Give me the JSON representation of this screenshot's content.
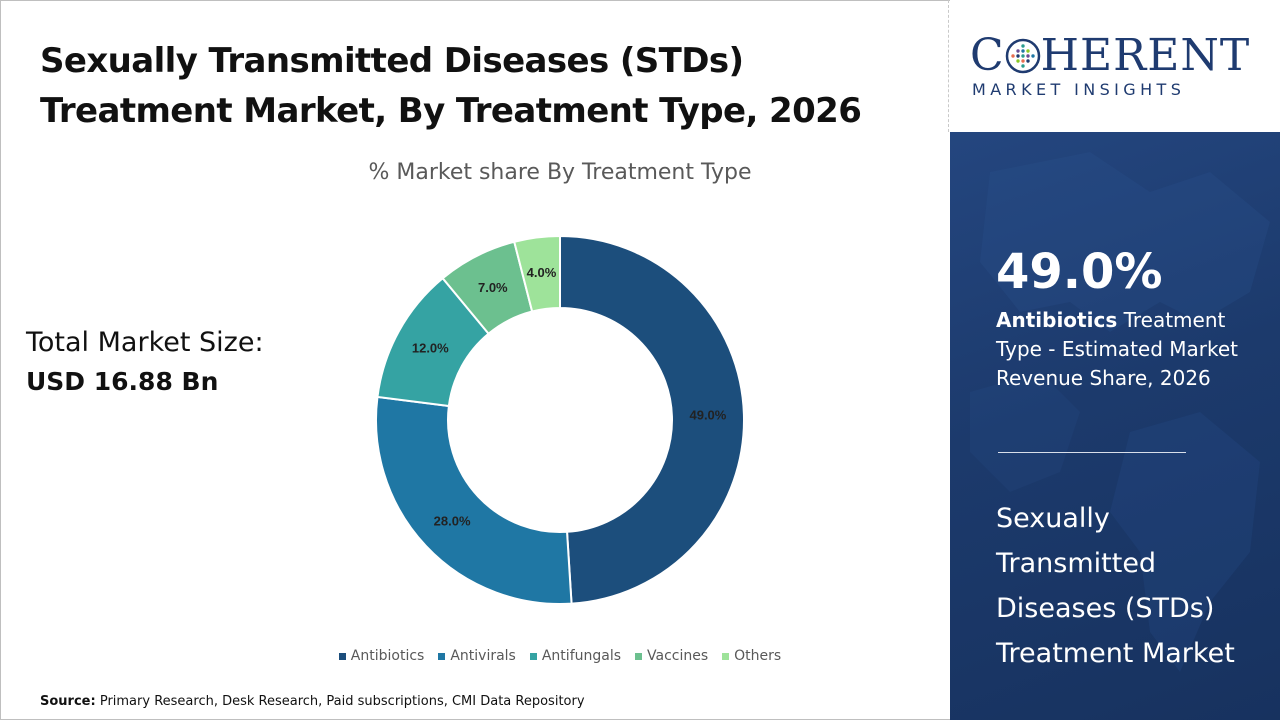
{
  "header": {
    "title": "Sexually Transmitted Diseases (STDs) Treatment Market, By Treatment Type, 2026"
  },
  "total_market": {
    "label": "Total Market Size:",
    "value": "USD 16.88 Bn"
  },
  "chart_data": {
    "type": "pie",
    "donut": true,
    "title": "% Market share By Treatment Type",
    "categories": [
      "Antibiotics",
      "Antivirals",
      "Antifungals",
      "Vaccines",
      "Others"
    ],
    "values": [
      49.0,
      28.0,
      12.0,
      7.0,
      4.0
    ],
    "labels": [
      "49.0%",
      "28.0%",
      "12.0%",
      "7.0%",
      "4.0%"
    ],
    "colors": [
      "#1c4e7c",
      "#1f77a4",
      "#35a3a3",
      "#6cc08f",
      "#9ee39a"
    ],
    "legend_position": "bottom"
  },
  "source": {
    "label": "Source:",
    "text": "Primary Research, Desk Research, Paid subscriptions, CMI Data Repository"
  },
  "logo": {
    "letter_c": "C",
    "text_after": "HERENT",
    "subtitle": "MARKET INSIGHTS"
  },
  "sidebar": {
    "highlight_value": "49.0%",
    "highlight_segment": "Antibiotics",
    "highlight_text": "Treatment Type - Estimated Market Revenue Share, 2026",
    "market_name": "Sexually Transmitted Diseases (STDs) Treatment Market"
  },
  "colors": {
    "sidebar_bg": "#1c3a6c",
    "brand": "#1f3b70"
  }
}
